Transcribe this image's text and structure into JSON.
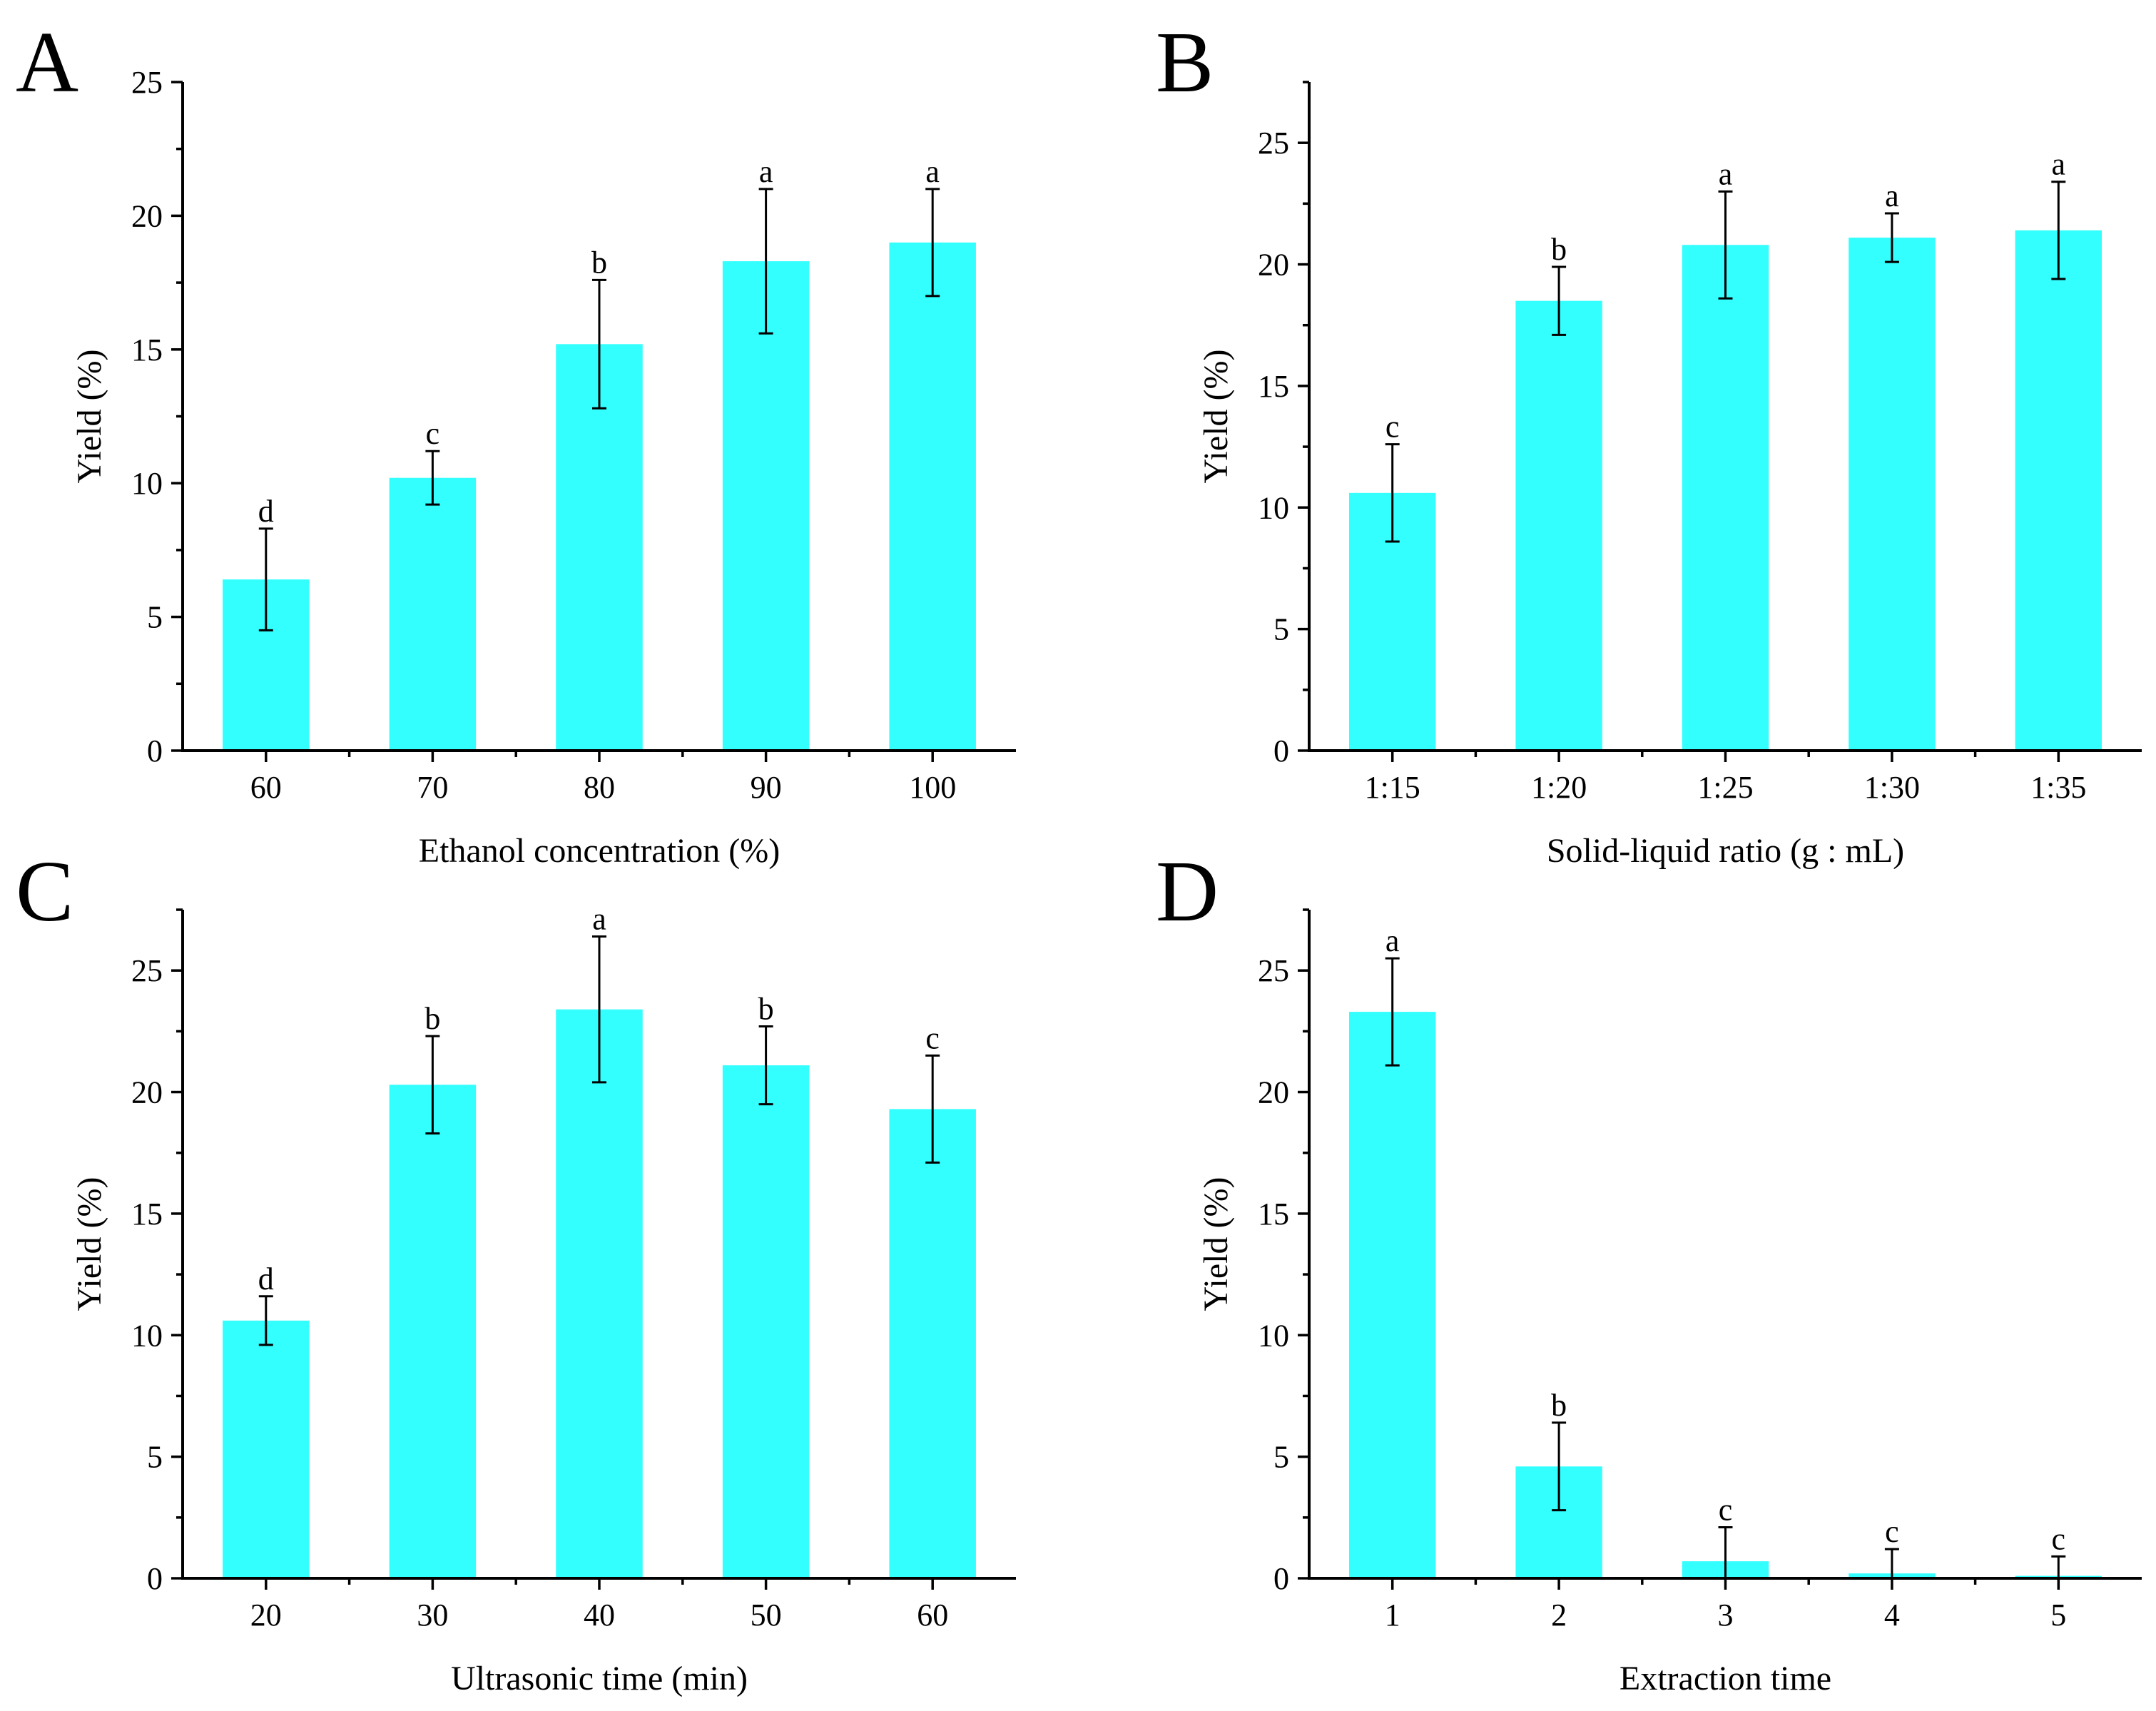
{
  "chart_data": [
    {
      "panel": "A",
      "type": "bar",
      "categories": [
        "60",
        "70",
        "80",
        "90",
        "100"
      ],
      "values": [
        6.4,
        10.2,
        15.2,
        18.3,
        19.0
      ],
      "errors": [
        1.9,
        1.0,
        2.4,
        2.7,
        2.0
      ],
      "significance": [
        "d",
        "c",
        "b",
        "a",
        "a"
      ],
      "xlabel": "Ethanol concentration (%)",
      "ylabel": "Yield (%)",
      "ylim": [
        0,
        25
      ],
      "yticks": [
        0,
        5,
        10,
        15,
        20,
        25
      ],
      "bar_color": "#33ffff"
    },
    {
      "panel": "B",
      "type": "bar",
      "categories": [
        "1:15",
        "1:20",
        "1:25",
        "1:30",
        "1:35"
      ],
      "values": [
        10.6,
        18.5,
        20.8,
        21.1,
        21.4
      ],
      "errors": [
        2.0,
        1.4,
        2.2,
        1.0,
        2.0
      ],
      "significance": [
        "c",
        "b",
        "a",
        "a",
        "a"
      ],
      "xlabel": "Solid-liquid ratio (g : mL)",
      "ylabel": "Yield (%)",
      "ylim": [
        0,
        27.5
      ],
      "yticks": [
        0,
        5,
        10,
        15,
        20,
        25
      ],
      "bar_color": "#33ffff"
    },
    {
      "panel": "C",
      "type": "bar",
      "categories": [
        "20",
        "30",
        "40",
        "50",
        "60"
      ],
      "values": [
        10.6,
        20.3,
        23.4,
        21.1,
        19.3
      ],
      "errors": [
        1.0,
        2.0,
        3.0,
        1.6,
        2.2
      ],
      "significance": [
        "d",
        "b",
        "a",
        "b",
        "c"
      ],
      "xlabel": "Ultrasonic time (min)",
      "ylabel": "Yield (%)",
      "ylim": [
        0,
        27.5
      ],
      "yticks": [
        0,
        5,
        10,
        15,
        20,
        25
      ],
      "bar_color": "#33ffff"
    },
    {
      "panel": "D",
      "type": "bar",
      "categories": [
        "1",
        "2",
        "3",
        "4",
        "5"
      ],
      "values": [
        23.3,
        4.6,
        0.7,
        0.2,
        0.1
      ],
      "errors": [
        2.2,
        1.8,
        1.4,
        1.0,
        0.8
      ],
      "significance": [
        "a",
        "b",
        "c",
        "c",
        "c"
      ],
      "xlabel": "Extraction time",
      "ylabel": "Yield (%)",
      "ylim": [
        0,
        27.5
      ],
      "yticks": [
        0,
        5,
        10,
        15,
        20,
        25
      ],
      "bar_color": "#33ffff"
    }
  ]
}
